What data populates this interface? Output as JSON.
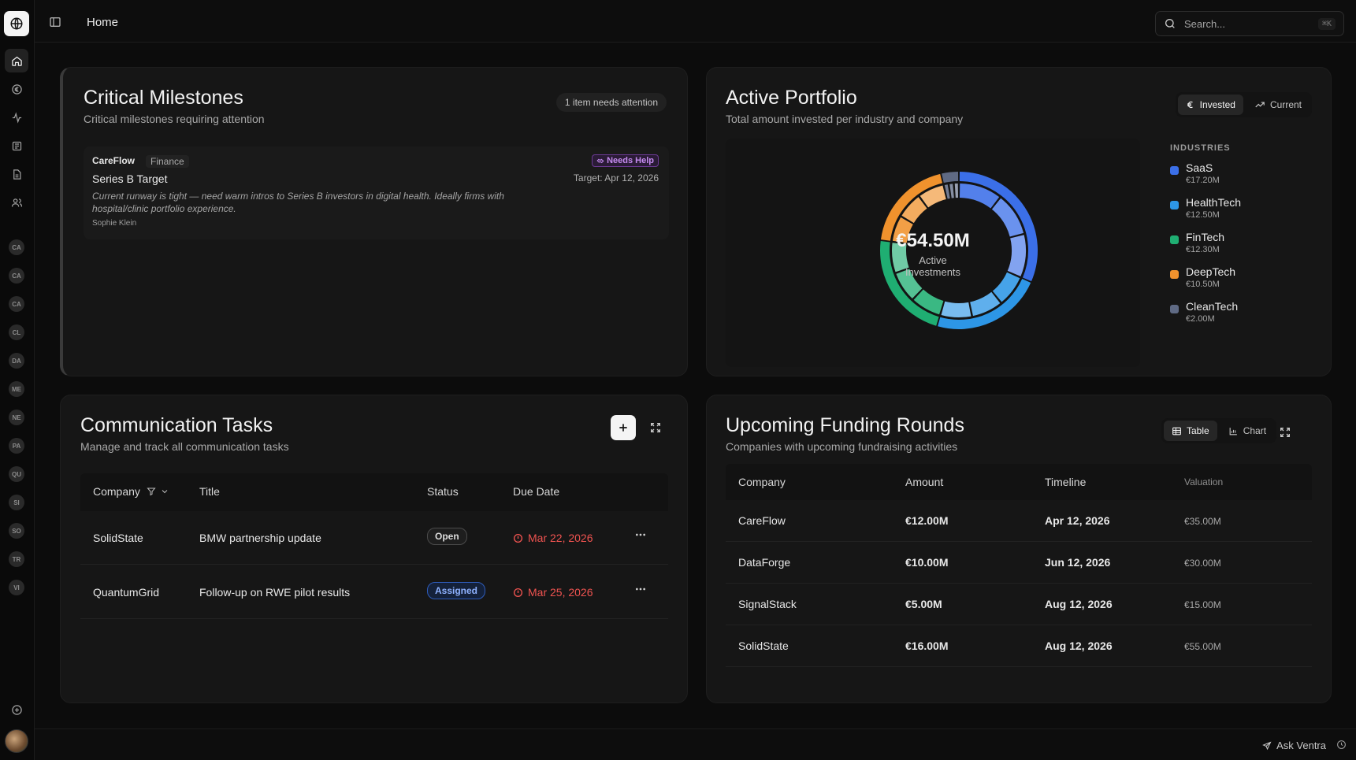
{
  "sidebar": {
    "nav": [
      "home-icon",
      "euro-circle-icon",
      "activity-icon",
      "newspaper-icon",
      "document-icon",
      "users-icon"
    ],
    "companies": [
      "CA",
      "CA",
      "CA",
      "CL",
      "DA",
      "ME",
      "NE",
      "PA",
      "QU",
      "SI",
      "SO",
      "TR",
      "VI"
    ]
  },
  "header": {
    "breadcrumb": "Home"
  },
  "search": {
    "placeholder": "Search...",
    "shortcut": "⌘K"
  },
  "milestones": {
    "title": "Critical Milestones",
    "subtitle": "Critical milestones requiring attention",
    "badge": "1 item needs attention",
    "items": [
      {
        "company": "CareFlow",
        "tag": "Finance",
        "name": "Series B Target",
        "description": "Current runway is tight — need warm intros to Series B investors in digital health. Ideally firms with hospital/clinic portfolio experience.",
        "owner": "Sophie Klein",
        "status": "Needs Help",
        "target": "Target: Apr 12, 2026"
      }
    ]
  },
  "portfolio": {
    "title": "Active Portfolio",
    "subtitle": "Total amount invested per industry and company",
    "toggle": {
      "invested": "Invested",
      "current": "Current",
      "active": "invested"
    },
    "total": "€54.50M",
    "total_caption": "Active Investments",
    "industries_label": "INDUSTRIES",
    "industries": [
      {
        "name": "SaaS",
        "value": "€17.20M",
        "amount": 17.2,
        "color": "#3b6fe8"
      },
      {
        "name": "HealthTech",
        "value": "€12.50M",
        "amount": 12.5,
        "color": "#2d96e6"
      },
      {
        "name": "FinTech",
        "value": "€12.30M",
        "amount": 12.3,
        "color": "#1fae72"
      },
      {
        "name": "DeepTech",
        "value": "€10.50M",
        "amount": 10.5,
        "color": "#f0922d"
      },
      {
        "name": "CleanTech",
        "value": "€2.00M",
        "amount": 2.0,
        "color": "#5f6a84"
      }
    ]
  },
  "tasks": {
    "title": "Communication Tasks",
    "subtitle": "Manage and track all communication tasks",
    "columns": {
      "company": "Company",
      "title": "Title",
      "status": "Status",
      "due": "Due Date"
    },
    "rows": [
      {
        "company": "SolidState",
        "title": "BMW partnership update",
        "status": "Open",
        "status_type": "open",
        "due": "Mar 22, 2026"
      },
      {
        "company": "QuantumGrid",
        "title": "Follow-up on RWE pilot results",
        "status": "Assigned",
        "status_type": "assigned",
        "due": "Mar 25, 2026"
      }
    ]
  },
  "funding": {
    "title": "Upcoming Funding Rounds",
    "subtitle": "Companies with upcoming fundraising activities",
    "view": {
      "table": "Table",
      "chart": "Chart",
      "active": "table"
    },
    "columns": {
      "company": "Company",
      "amount": "Amount",
      "timeline": "Timeline",
      "valuation": "Valuation"
    },
    "rows": [
      {
        "company": "CareFlow",
        "amount": "€12.00M",
        "timeline": "Apr 12, 2026",
        "valuation": "€35.00M"
      },
      {
        "company": "DataForge",
        "amount": "€10.00M",
        "timeline": "Jun 12, 2026",
        "valuation": "€30.00M"
      },
      {
        "company": "SignalStack",
        "amount": "€5.00M",
        "timeline": "Aug 12, 2026",
        "valuation": "€15.00M"
      },
      {
        "company": "SolidState",
        "amount": "€16.00M",
        "timeline": "Aug 12, 2026",
        "valuation": "€55.00M"
      }
    ]
  },
  "footer": {
    "ask_label": "Ask Ventra"
  }
}
